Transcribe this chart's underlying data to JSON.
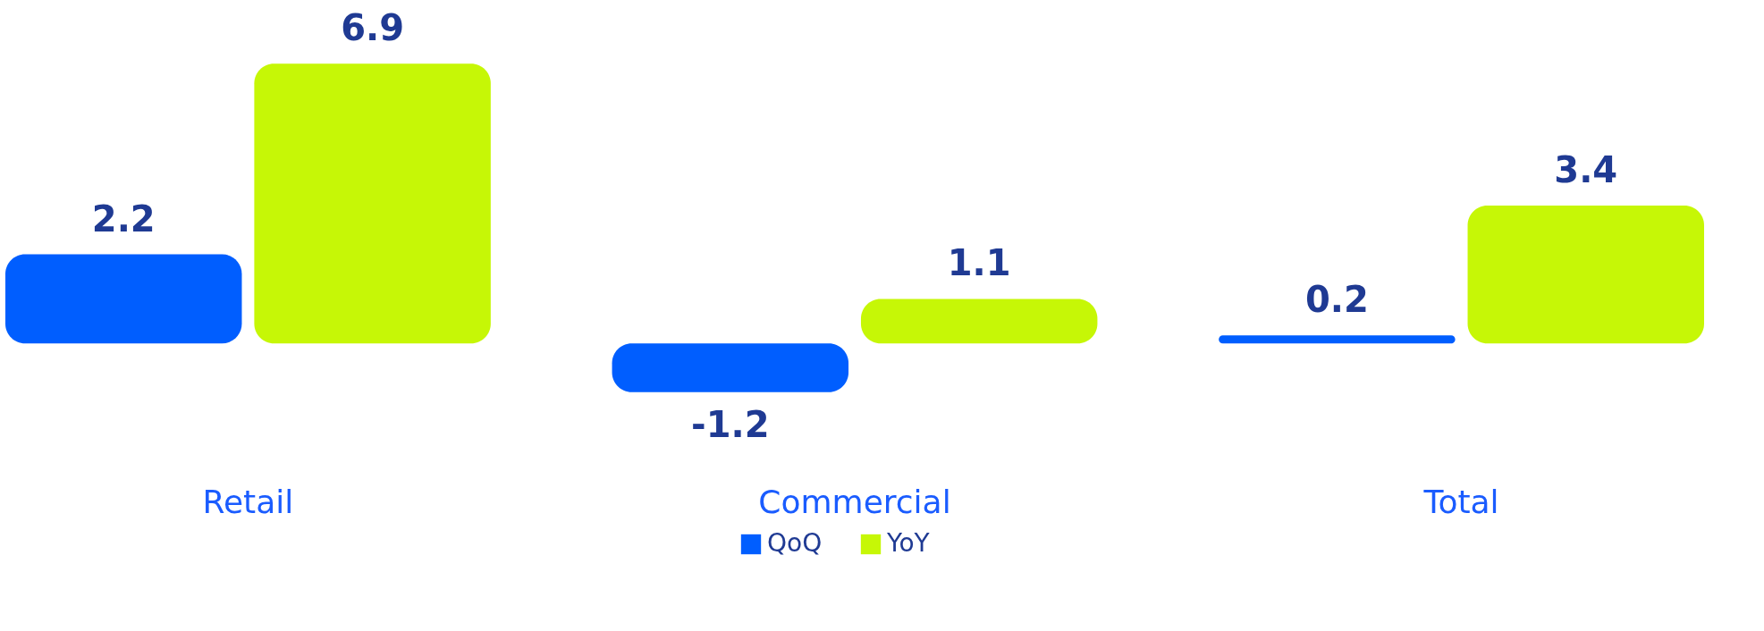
{
  "chart_data": {
    "type": "bar",
    "categories": [
      "Retail",
      "Commercial",
      "Total"
    ],
    "series": [
      {
        "name": "QoQ",
        "color": "#005eff",
        "values": [
          2.2,
          -1.2,
          0.2
        ]
      },
      {
        "name": "YoY",
        "color": "#c6f706",
        "values": [
          6.9,
          1.1,
          3.4
        ]
      }
    ],
    "data_labels": true,
    "grid": false,
    "legend": "bottom"
  }
}
